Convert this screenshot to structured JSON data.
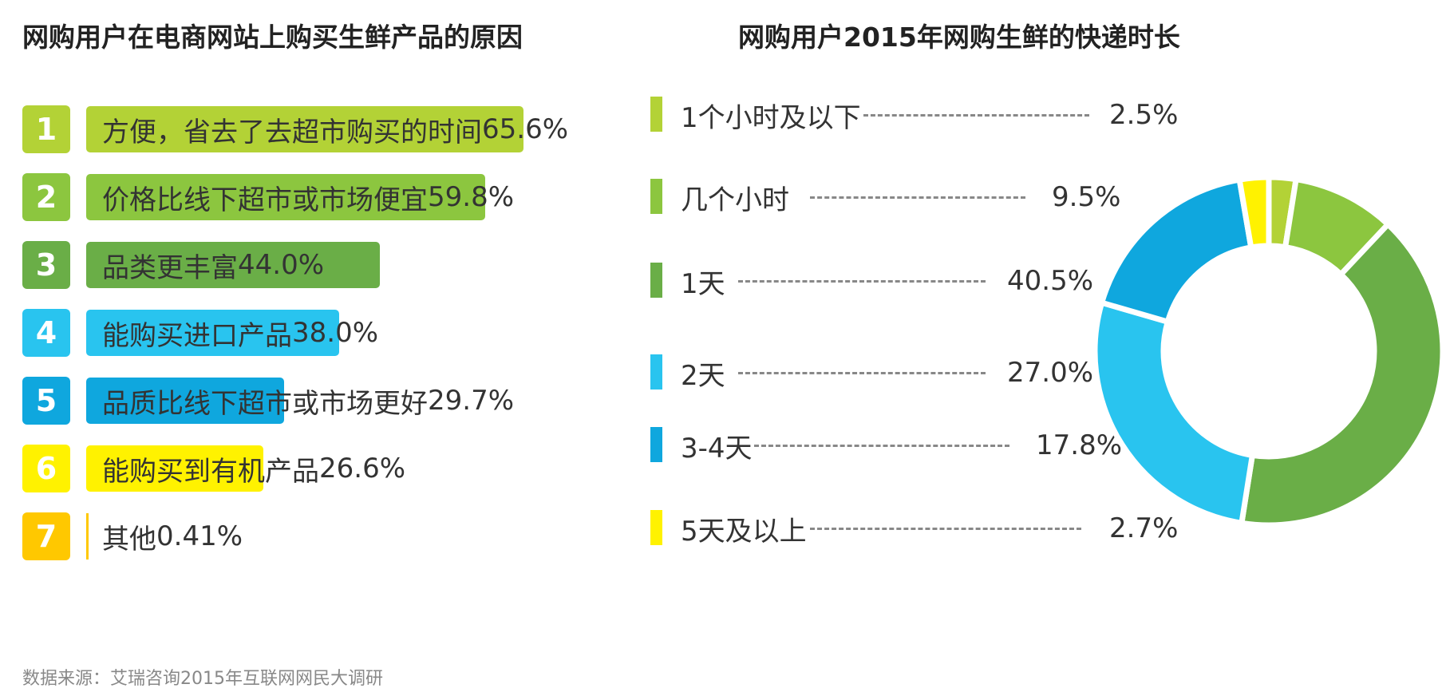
{
  "left_chart": {
    "title": "网购用户在电商网站上购买生鲜产品的原因"
  },
  "right_chart": {
    "title": "网购用户2015年网购生鲜的快递时长"
  },
  "source": "数据来源：艾瑞咨询2015年互联网网民大调研",
  "colors": {
    "light_green": "#B3D236",
    "green": "#8CC63F",
    "dark_green": "#6AAE47",
    "light_blue": "#29C4EF",
    "blue": "#0FA7DE",
    "yellow": "#FFF200",
    "amber": "#FFC800"
  },
  "chart_data": [
    {
      "type": "bar",
      "orientation": "horizontal",
      "title": "网购用户在电商网站上购买生鲜产品的原因",
      "categories": [
        "方便，省去了去超市购买的时间",
        "价格比线下超市或市场便宜",
        "品类更丰富",
        "能购买进口产品",
        "品质比线下超市或市场更好",
        "能购买到有机产品",
        "其他"
      ],
      "ranks": [
        "1",
        "2",
        "3",
        "4",
        "5",
        "6",
        "7"
      ],
      "values": [
        65.6,
        59.8,
        44.0,
        38.0,
        29.7,
        26.6,
        0.41
      ],
      "value_labels": [
        "65.6%",
        "59.8%",
        "44.0%",
        "38.0%",
        "29.7%",
        "26.6%",
        "0.41%"
      ],
      "colors": [
        "#B3D236",
        "#8CC63F",
        "#6AAE47",
        "#29C4EF",
        "#0FA7DE",
        "#FFF200",
        "#FFC800"
      ],
      "unit": "%"
    },
    {
      "type": "pie",
      "variant": "donut",
      "title": "网购用户2015年网购生鲜的快递时长",
      "categories": [
        "1个小时及以下",
        "几个小时",
        "1天",
        "2天",
        "3-4天",
        "5天及以上"
      ],
      "values": [
        2.5,
        9.5,
        40.5,
        27.0,
        17.8,
        2.7
      ],
      "value_labels": [
        "2.5%",
        "9.5%",
        "40.5%",
        "27.0%",
        "17.8%",
        "2.7%"
      ],
      "colors": [
        "#B3D236",
        "#8CC63F",
        "#6AAE47",
        "#29C4EF",
        "#0FA7DE",
        "#FFF200"
      ],
      "unit": "%",
      "legend": "left"
    }
  ]
}
